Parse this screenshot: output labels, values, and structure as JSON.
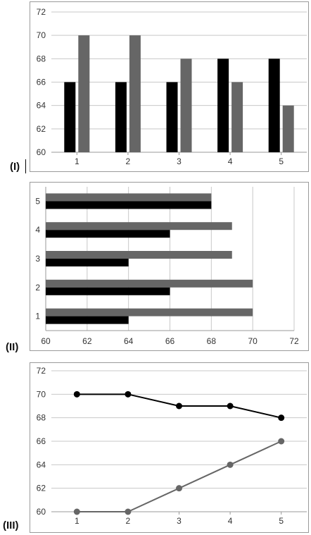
{
  "panel_labels": [
    "(I)",
    "(II)",
    "(III)"
  ],
  "colors": {
    "series_dark": "#000000",
    "series_gray": "#666666",
    "grid": "#c8c8c8",
    "axis": "#9a9a9a"
  },
  "chart_data": [
    {
      "type": "bar",
      "label": "(I)",
      "categories": [
        "1",
        "2",
        "3",
        "4",
        "5"
      ],
      "series": [
        {
          "values": [
            66,
            66,
            66,
            68,
            68
          ],
          "color": "#000000"
        },
        {
          "values": [
            70,
            70,
            68,
            66,
            64
          ],
          "color": "#666666"
        }
      ],
      "ylim": [
        60,
        72
      ],
      "yticks": [
        60,
        62,
        64,
        66,
        68,
        70,
        72
      ],
      "grid": true,
      "orientation": "vertical"
    },
    {
      "type": "bar",
      "label": "(II)",
      "categories": [
        "1",
        "2",
        "3",
        "4",
        "5"
      ],
      "series": [
        {
          "values": [
            64,
            66,
            64,
            66,
            68
          ],
          "color": "#000000"
        },
        {
          "values": [
            70,
            70,
            69,
            69,
            68
          ],
          "color": "#666666"
        }
      ],
      "xlim": [
        60,
        72
      ],
      "xticks": [
        60,
        62,
        64,
        66,
        68,
        70,
        72
      ],
      "grid": true,
      "orientation": "horizontal"
    },
    {
      "type": "line",
      "label": "(III)",
      "x": [
        "1",
        "2",
        "3",
        "4",
        "5"
      ],
      "series": [
        {
          "values": [
            70,
            70,
            69,
            69,
            68
          ],
          "color": "#000000"
        },
        {
          "values": [
            60,
            60,
            62,
            64,
            66
          ],
          "color": "#666666"
        }
      ],
      "ylim": [
        60,
        72
      ],
      "yticks": [
        60,
        62,
        64,
        66,
        68,
        70,
        72
      ],
      "grid": true,
      "markers": true
    }
  ]
}
